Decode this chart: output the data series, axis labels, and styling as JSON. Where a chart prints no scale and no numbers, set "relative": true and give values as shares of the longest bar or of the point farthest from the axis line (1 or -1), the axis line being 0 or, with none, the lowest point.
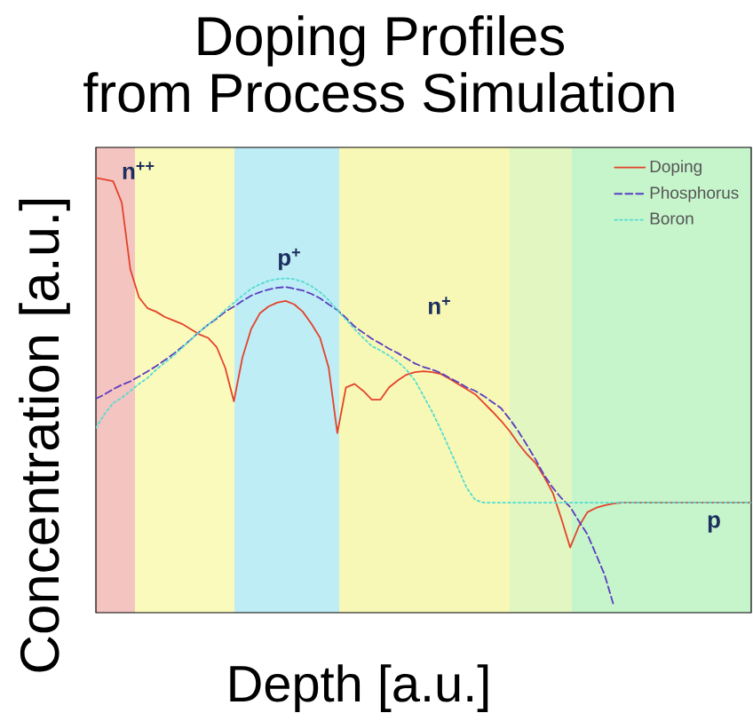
{
  "chart_data": {
    "type": "line",
    "title": "Doping Profiles",
    "subtitle": "from Process Simulation",
    "xlabel": "Depth [a.u.]",
    "ylabel": "Concentration [a.u.]",
    "relative": true,
    "legend": "top right",
    "annotations": [
      "n$^{++}$",
      "p$^{+}$",
      "n$^{+}$",
      "p"
    ],
    "categories": [
      null,
      null,
      null,
      null,
      null,
      null,
      null,
      null,
      null,
      null,
      null,
      null,
      null,
      null,
      null,
      null,
      null,
      null,
      null,
      null,
      null,
      null,
      null,
      null,
      null,
      null,
      null,
      null,
      null,
      null,
      null,
      null,
      null,
      null,
      null,
      null,
      null,
      null,
      null,
      null,
      null,
      null,
      null,
      null,
      null,
      null,
      null,
      null,
      null,
      null,
      null,
      null,
      null,
      null,
      null,
      null,
      null,
      null,
      null,
      null,
      null,
      null,
      null,
      null,
      null,
      null,
      null,
      null,
      null,
      null,
      null,
      null,
      null,
      null,
      null,
      null,
      null
    ],
    "series": [
      {
        "name": "Doping",
        "color": "#e2432a",
        "line_style": "solid",
        "values": [
          1.0,
          0.996,
          0.992,
          0.943,
          0.789,
          0.725,
          0.7,
          0.692,
          0.68,
          0.672,
          0.664,
          0.652,
          0.64,
          0.632,
          0.611,
          0.563,
          0.486,
          0.587,
          0.652,
          0.688,
          0.704,
          0.713,
          0.717,
          0.709,
          0.692,
          0.664,
          0.632,
          0.563,
          0.413,
          0.518,
          0.526,
          0.51,
          0.49,
          0.49,
          0.518,
          0.534,
          0.547,
          0.553,
          0.555,
          0.553,
          0.549,
          0.538,
          0.526,
          0.514,
          0.502,
          0.482,
          0.462,
          0.441,
          0.417,
          0.389,
          0.364,
          0.344,
          0.312,
          0.275,
          0.215,
          0.15,
          0.198,
          0.231,
          0.241,
          0.247,
          0.251,
          0.253,
          0.253,
          0.253,
          0.253,
          0.253,
          0.253,
          0.253,
          0.253,
          0.253,
          0.253,
          0.253,
          0.253,
          0.253,
          0.253,
          0.253,
          0.253
        ]
      },
      {
        "name": "Phosphorus",
        "color": "#5a3cc0",
        "line_style": "dashed",
        "values": [
          0.492,
          0.502,
          0.514,
          0.524,
          0.532,
          0.543,
          0.555,
          0.567,
          0.581,
          0.595,
          0.611,
          0.628,
          0.646,
          0.662,
          0.676,
          0.692,
          0.704,
          0.717,
          0.729,
          0.737,
          0.743,
          0.747,
          0.749,
          0.745,
          0.741,
          0.733,
          0.723,
          0.709,
          0.696,
          0.678,
          0.658,
          0.644,
          0.63,
          0.619,
          0.607,
          0.597,
          0.585,
          0.573,
          0.565,
          0.559,
          0.551,
          0.54,
          0.53,
          0.518,
          0.51,
          0.498,
          0.484,
          0.47,
          0.445,
          0.417,
          0.385,
          0.352,
          0.316,
          0.287,
          0.263,
          0.243,
          0.211,
          0.18,
          0.134,
          0.087,
          0.02,
          null,
          null,
          null,
          null,
          null,
          null,
          null,
          null,
          null,
          null,
          null,
          null,
          null,
          null,
          null,
          null
        ]
      },
      {
        "name": "Boron",
        "color": "#52dcd2",
        "line_style": "dotted",
        "values": [
          0.425,
          0.457,
          0.482,
          0.494,
          0.51,
          0.526,
          0.54,
          0.559,
          0.575,
          0.591,
          0.609,
          0.628,
          0.646,
          0.662,
          0.678,
          0.696,
          0.713,
          0.729,
          0.745,
          0.755,
          0.763,
          0.767,
          0.769,
          0.767,
          0.761,
          0.751,
          0.737,
          0.719,
          0.696,
          0.674,
          0.652,
          0.632,
          0.613,
          0.603,
          0.591,
          0.577,
          0.559,
          0.534,
          0.498,
          0.462,
          0.421,
          0.377,
          0.332,
          0.287,
          0.259,
          0.253,
          0.253,
          0.253,
          0.253,
          0.253,
          0.253,
          0.253,
          0.253,
          0.253,
          0.253,
          0.253,
          0.253,
          0.253,
          0.253,
          0.253,
          0.253,
          0.253,
          0.253,
          0.253,
          0.253,
          0.253,
          0.253,
          0.253,
          0.253,
          0.253,
          0.253,
          0.253,
          0.253,
          0.253,
          0.253,
          0.253,
          0.253
        ]
      }
    ]
  }
}
